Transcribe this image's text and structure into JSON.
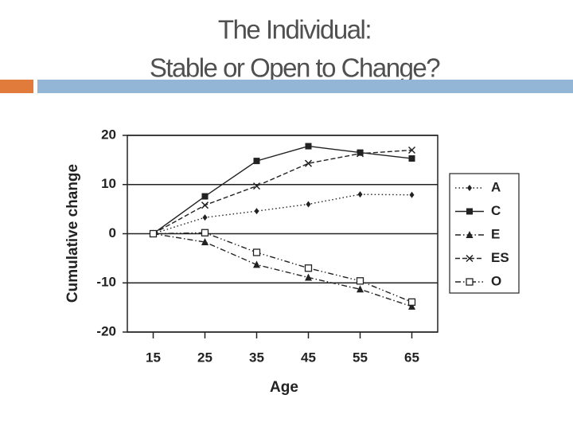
{
  "slide": {
    "title_lines": [
      "The Individual:",
      "Stable or Open to Change?"
    ]
  },
  "chart_data": {
    "type": "line",
    "x_label": "Age",
    "y_label": "Cumulative change",
    "x": [
      15,
      25,
      35,
      45,
      55,
      65
    ],
    "xlim": [
      10,
      70
    ],
    "xticks": [
      15,
      25,
      35,
      45,
      55,
      65
    ],
    "ylim": [
      -20,
      20
    ],
    "yticks": [
      -20,
      -10,
      0,
      10,
      20
    ],
    "grid": true,
    "legend": "right",
    "series": [
      {
        "name": "A",
        "color": "#222222",
        "marker": "diamond",
        "linestyle": "dotted",
        "values": [
          0,
          3.3,
          4.6,
          6,
          8,
          7.9
        ]
      },
      {
        "name": "C",
        "color": "#222222",
        "marker": "square",
        "linestyle": "solid",
        "values": [
          0,
          7.6,
          14.8,
          17.8,
          16.5,
          15.3
        ]
      },
      {
        "name": "E",
        "color": "#222222",
        "marker": "triangle",
        "linestyle": "dashdot",
        "values": [
          0,
          -1.7,
          -6.3,
          -8.9,
          -11.3,
          -14.8
        ]
      },
      {
        "name": "ES",
        "color": "#222222",
        "marker": "x",
        "linestyle": "dashed",
        "values": [
          0,
          5.8,
          9.7,
          14.3,
          16.3,
          17
        ]
      },
      {
        "name": "O",
        "color": "#222222",
        "marker": "open-square",
        "linestyle": "dashdotdot",
        "values": [
          0,
          0.2,
          -3.8,
          -7,
          -9.6,
          -13.9
        ]
      }
    ]
  }
}
